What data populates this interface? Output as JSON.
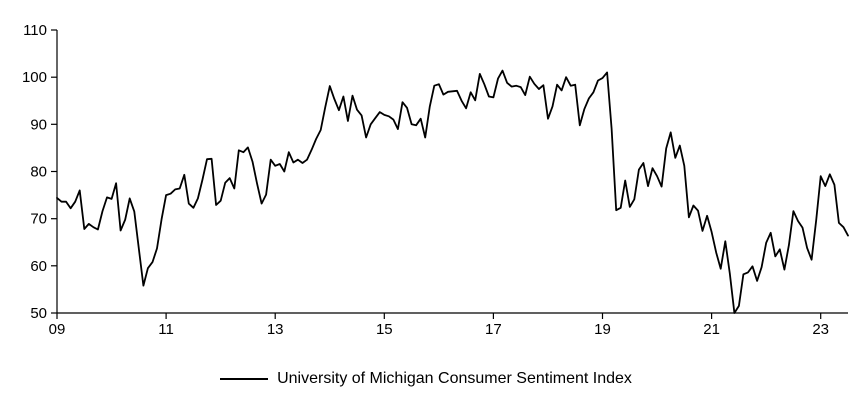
{
  "chart": {
    "background": "#ffffff",
    "axis_color": "#000000",
    "tick_label_color": "#000000"
  },
  "chart_data": {
    "type": "line",
    "xlabel": "",
    "ylabel": "",
    "ylim": [
      50,
      110
    ],
    "y_ticks": [
      50,
      60,
      70,
      80,
      90,
      100,
      110
    ],
    "x_tick_labels": [
      "09",
      "11",
      "13",
      "15",
      "17",
      "19",
      "21",
      "23"
    ],
    "x_tick_indices": [
      0,
      24,
      48,
      72,
      96,
      120,
      144,
      168
    ],
    "grid": false,
    "legend_position": "bottom-center",
    "series": [
      {
        "name": "University of Michigan Consumer Sentiment Index",
        "color": "#000000",
        "line_width": 1.8,
        "values": [
          74.4,
          73.6,
          73.6,
          72.2,
          73.6,
          76.0,
          67.8,
          68.9,
          68.2,
          67.7,
          71.6,
          74.5,
          74.2,
          77.5,
          67.5,
          69.8,
          74.3,
          71.5,
          63.7,
          55.8,
          59.5,
          60.8,
          63.7,
          69.9,
          75.0,
          75.3,
          76.2,
          76.4,
          79.3,
          73.2,
          72.3,
          74.3,
          78.3,
          82.6,
          82.7,
          72.9,
          73.8,
          77.6,
          78.6,
          76.4,
          84.5,
          84.1,
          85.1,
          82.1,
          77.5,
          73.2,
          75.1,
          82.5,
          81.2,
          81.6,
          80.0,
          84.1,
          81.9,
          82.5,
          81.8,
          82.5,
          84.6,
          86.9,
          88.8,
          93.6,
          98.1,
          95.4,
          93.0,
          95.9,
          90.7,
          96.1,
          93.1,
          91.9,
          87.2,
          90.0,
          91.3,
          92.6,
          92.0,
          91.7,
          91.0,
          89.0,
          94.7,
          93.5,
          90.0,
          89.8,
          91.2,
          87.2,
          93.8,
          98.2,
          98.5,
          96.3,
          96.9,
          97.0,
          97.1,
          95.0,
          93.4,
          96.8,
          95.1,
          100.7,
          98.5,
          95.9,
          95.7,
          99.7,
          101.4,
          98.8,
          98.0,
          98.2,
          97.9,
          96.2,
          100.1,
          98.6,
          97.5,
          98.3,
          91.2,
          93.8,
          98.4,
          97.2,
          100.0,
          98.2,
          98.4,
          89.8,
          93.2,
          95.5,
          96.8,
          99.3,
          99.8,
          101.0,
          89.1,
          71.8,
          72.3,
          78.1,
          72.5,
          74.1,
          80.4,
          81.8,
          76.9,
          80.7,
          79.0,
          76.8,
          84.9,
          88.3,
          82.9,
          85.5,
          81.2,
          70.3,
          72.8,
          71.7,
          67.4,
          70.6,
          67.2,
          62.8,
          59.4,
          65.2,
          58.4,
          50.0,
          51.5,
          58.2,
          58.6,
          59.9,
          56.8,
          59.7,
          64.9,
          67.0,
          62.0,
          63.5,
          59.2,
          64.4,
          71.6,
          69.5,
          68.1,
          63.8,
          61.3,
          69.7,
          79.0,
          76.9,
          79.4,
          77.2,
          69.1,
          68.2,
          66.4
        ]
      }
    ]
  }
}
